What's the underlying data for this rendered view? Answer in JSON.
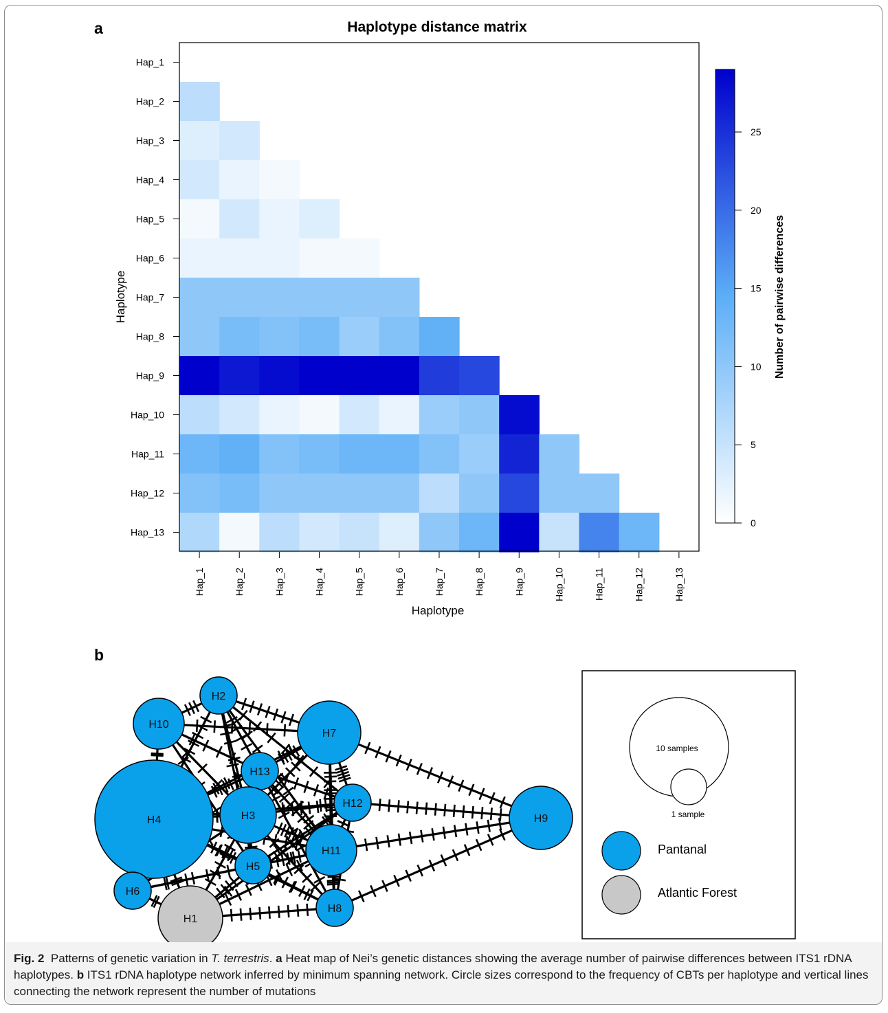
{
  "panel_a": {
    "letter": "a",
    "chart_data": {
      "type": "heatmap",
      "title": "Haplotype distance matrix",
      "xlabel": "Haplotype",
      "ylabel": "Haplotype",
      "categories": [
        "Hap_1",
        "Hap_2",
        "Hap_3",
        "Hap_4",
        "Hap_5",
        "Hap_6",
        "Hap_7",
        "Hap_8",
        "Hap_9",
        "Hap_10",
        "Hap_11",
        "Hap_12",
        "Hap_13"
      ],
      "lower_triangle_values": [
        [],
        [
          6
        ],
        [
          3,
          4
        ],
        [
          4,
          2,
          1
        ],
        [
          1,
          4,
          2,
          3
        ],
        [
          2,
          2,
          2,
          1,
          1
        ],
        [
          10,
          10,
          10,
          10,
          10,
          10
        ],
        [
          10,
          12,
          11,
          12,
          9,
          11,
          14
        ],
        [
          29,
          27,
          28,
          29,
          29,
          29,
          24,
          23
        ],
        [
          6,
          4,
          2,
          1,
          4,
          2,
          9,
          10,
          28
        ],
        [
          13,
          14,
          11,
          12,
          13,
          13,
          11,
          9,
          26,
          10
        ],
        [
          11,
          12,
          10,
          10,
          10,
          10,
          6,
          10,
          23,
          10,
          10
        ],
        [
          7,
          1,
          6,
          4,
          5,
          3,
          10,
          13,
          29,
          5,
          18,
          13
        ]
      ],
      "colorbar": {
        "label": "Number of pairwise differences",
        "min": 0,
        "max": 29,
        "ticks": [
          0,
          5,
          10,
          15,
          20,
          25
        ],
        "low_color": "#ffffff",
        "mid_color": "#5caef7",
        "high_color": "#0000cc"
      },
      "grid": false
    }
  },
  "panel_b": {
    "letter": "b",
    "nodes": [
      {
        "id": "H1",
        "label": "H1",
        "group": "Atlantic Forest"
      },
      {
        "id": "H2",
        "label": "H2",
        "group": "Pantanal"
      },
      {
        "id": "H3",
        "label": "H3",
        "group": "Pantanal"
      },
      {
        "id": "H4",
        "label": "H4",
        "group": "Pantanal"
      },
      {
        "id": "H5",
        "label": "H5",
        "group": "Pantanal"
      },
      {
        "id": "H6",
        "label": "H6",
        "group": "Pantanal"
      },
      {
        "id": "H7",
        "label": "H7",
        "group": "Pantanal"
      },
      {
        "id": "H8",
        "label": "H8",
        "group": "Pantanal"
      },
      {
        "id": "H9",
        "label": "H9",
        "group": "Pantanal"
      },
      {
        "id": "H10",
        "label": "H10",
        "group": "Pantanal"
      },
      {
        "id": "H11",
        "label": "H11",
        "group": "Pantanal"
      },
      {
        "id": "H12",
        "label": "H12",
        "group": "Pantanal"
      },
      {
        "id": "H13",
        "label": "H13",
        "group": "Pantanal"
      }
    ],
    "legend": {
      "size_large": "10 samples",
      "size_small": "1 sample",
      "pantanal_label": "Pantanal",
      "atlantic_label": "Atlantic Forest",
      "pantanal_color": "#0aa0ea",
      "atlantic_color": "#c8c8c8"
    }
  },
  "caption": {
    "fig": "Fig. 2",
    "intro": "Patterns of genetic variation in ",
    "species": "T. terrestris",
    "after_species": ". ",
    "a_letter": "a",
    "a_text": " Heat map of Nei’s genetic distances showing the average number of pairwise differences between ITS1 rDNA haplotypes. ",
    "b_letter": "b",
    "b_text": " ITS1 rDNA haplotype network inferred by minimum spanning network. Circle sizes correspond to the frequency of CBTs per haplotype and vertical lines connecting the network represent the number of mutations"
  }
}
